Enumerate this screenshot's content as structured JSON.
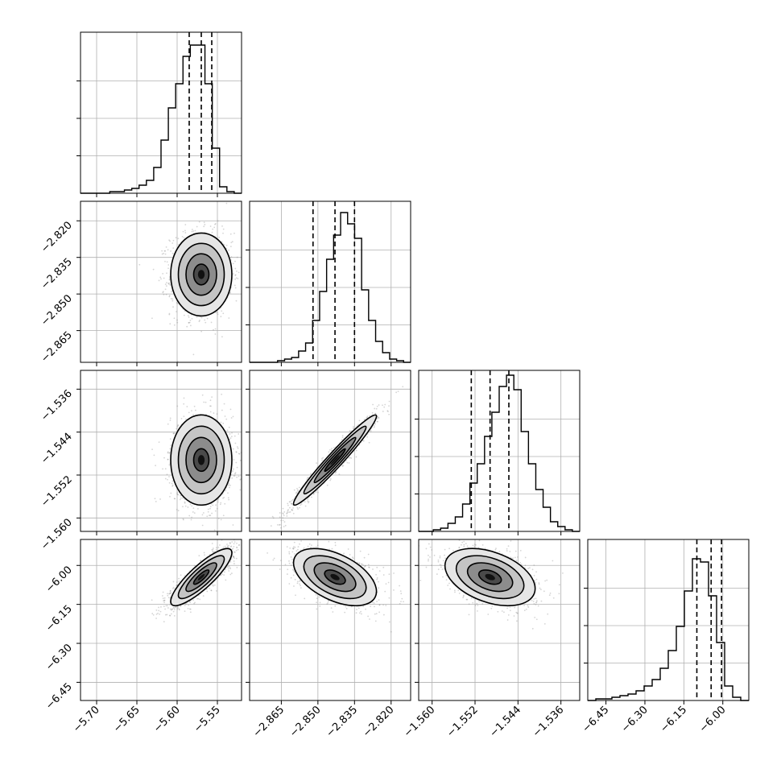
{
  "chart_data": {
    "type": "corner",
    "parameters": 4,
    "grid": true,
    "colors": {
      "hist": "#000000",
      "points": "#888888",
      "grid": "#b0b0b0",
      "frame": "#000000"
    },
    "ranges": [
      [
        -5.72,
        -5.52
      ],
      [
        -2.878,
        -2.812
      ],
      [
        -1.5625,
        -1.5325
      ],
      [
        -6.52,
        -5.9
      ]
    ],
    "ticks": [
      {
        "values": [
          -5.7,
          -5.65,
          -5.6,
          -5.55
        ],
        "labels": [
          "−5.70",
          "−5.65",
          "−5.60",
          "−5.55"
        ]
      },
      {
        "values": [
          -2.865,
          -2.85,
          -2.835,
          -2.82
        ],
        "labels": [
          "−2.865",
          "−2.850",
          "−2.835",
          "−2.820"
        ]
      },
      {
        "values": [
          -1.56,
          -1.552,
          -1.544,
          -1.536
        ],
        "labels": [
          "−1.560",
          "−1.552",
          "−1.544",
          "−1.536"
        ]
      },
      {
        "values": [
          -6.45,
          -6.3,
          -6.15,
          -6.0
        ],
        "labels": [
          "−6.45",
          "−6.30",
          "−6.15",
          "−6.00"
        ]
      }
    ],
    "quantiles": [
      [
        -5.585,
        -5.57,
        -5.557
      ],
      [
        -2.852,
        -2.843,
        -2.835
      ],
      [
        -1.5527,
        -1.5492,
        -1.5457
      ],
      [
        -6.1,
        -6.045,
        -6.005
      ]
    ],
    "histograms": [
      {
        "values": [
          0,
          0,
          0,
          0,
          1,
          1,
          2,
          3,
          5,
          8,
          16,
          33,
          53,
          68,
          85,
          92,
          92,
          68,
          28,
          4,
          1,
          0
        ]
      },
      {
        "values": [
          0,
          0,
          0,
          0,
          1,
          2,
          3,
          7,
          12,
          26,
          44,
          64,
          79,
          93,
          86,
          77,
          45,
          26,
          13,
          6,
          2,
          1,
          0
        ]
      },
      {
        "values": [
          0,
          0,
          1,
          2,
          5,
          9,
          17,
          30,
          42,
          59,
          74,
          90,
          97,
          88,
          62,
          42,
          26,
          15,
          6,
          3,
          1,
          0
        ]
      },
      {
        "values": [
          0,
          1,
          1,
          2,
          3,
          4,
          6,
          9,
          13,
          20,
          31,
          46,
          68,
          88,
          86,
          65,
          36,
          9,
          2,
          0
        ]
      }
    ],
    "pairs": [
      {
        "x": 0,
        "y": 1,
        "mean": [
          -5.57,
          -2.842
        ],
        "sd": [
          0.019,
          0.0085
        ],
        "corr": 0.0
      },
      {
        "x": 0,
        "y": 2,
        "mean": [
          -5.57,
          -1.5492
        ],
        "sd": [
          0.019,
          0.0042
        ],
        "corr": 0.0
      },
      {
        "x": 1,
        "y": 2,
        "mean": [
          -2.843,
          -1.5492
        ],
        "sd": [
          0.0085,
          0.0042
        ],
        "corr": 0.97
      },
      {
        "x": 0,
        "y": 3,
        "mean": [
          -5.57,
          -6.045
        ],
        "sd": [
          0.019,
          0.055
        ],
        "corr": 0.85
      },
      {
        "x": 1,
        "y": 3,
        "mean": [
          -2.843,
          -6.045
        ],
        "sd": [
          0.0085,
          0.055
        ],
        "corr": -0.5
      },
      {
        "x": 2,
        "y": 3,
        "mean": [
          -1.5492,
          -6.045
        ],
        "sd": [
          0.0042,
          0.055
        ],
        "corr": -0.4
      }
    ]
  }
}
